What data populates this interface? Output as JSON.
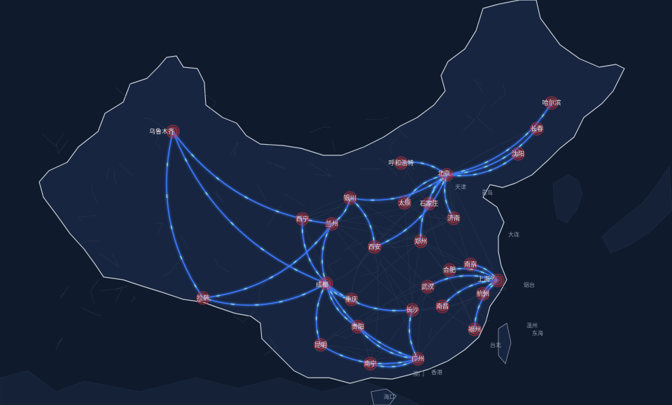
{
  "map": {
    "colors": {
      "background": "#0f1a2c",
      "land": "#16233a",
      "border": "#c9ced6",
      "roads": "#2a3a55",
      "route": "#3d7bff",
      "route_glow": "#7fe0ff",
      "city_ring": "#c0303a"
    },
    "cities": [
      {
        "id": "urumqi",
        "name": "乌鲁木齐"
      },
      {
        "id": "lhasa",
        "name": "拉萨"
      },
      {
        "id": "xining",
        "name": "西宁"
      },
      {
        "id": "lanzhou",
        "name": "兰州"
      },
      {
        "id": "yinchuan",
        "name": "银川"
      },
      {
        "id": "hohhot",
        "name": "呼和浩特"
      },
      {
        "id": "beijing",
        "name": "北京"
      },
      {
        "id": "harbin",
        "name": "哈尔滨"
      },
      {
        "id": "changchun",
        "name": "长春"
      },
      {
        "id": "shenyang",
        "name": "沈阳"
      },
      {
        "id": "taiyuan",
        "name": "太原"
      },
      {
        "id": "shijiazhuang",
        "name": "石家庄"
      },
      {
        "id": "jinan",
        "name": "济南"
      },
      {
        "id": "zhengzhou",
        "name": "郑州"
      },
      {
        "id": "xian",
        "name": "西安"
      },
      {
        "id": "chengdu",
        "name": "成都"
      },
      {
        "id": "chongqing",
        "name": "重庆"
      },
      {
        "id": "guiyang",
        "name": "贵阳"
      },
      {
        "id": "kunming",
        "name": "昆明"
      },
      {
        "id": "nanning",
        "name": "南宁"
      },
      {
        "id": "guangzhou",
        "name": "广州"
      },
      {
        "id": "changsha",
        "name": "长沙"
      },
      {
        "id": "wuhan",
        "name": "武汉"
      },
      {
        "id": "hefei",
        "name": "合肥"
      },
      {
        "id": "nanjing",
        "name": "南京"
      },
      {
        "id": "shanghai",
        "name": "上海"
      },
      {
        "id": "hangzhou",
        "name": "杭州"
      },
      {
        "id": "nanchang",
        "name": "南昌"
      },
      {
        "id": "fuzhou",
        "name": "福州"
      }
    ],
    "routes": [
      {
        "from": "urumqi",
        "to": "lhasa"
      },
      {
        "from": "urumqi",
        "to": "lanzhou"
      },
      {
        "from": "urumqi",
        "to": "chengdu"
      },
      {
        "from": "lhasa",
        "to": "lanzhou"
      },
      {
        "from": "lhasa",
        "to": "chengdu"
      },
      {
        "from": "lanzhou",
        "to": "yinchuan"
      },
      {
        "from": "lanzhou",
        "to": "chengdu"
      },
      {
        "from": "xining",
        "to": "chengdu"
      },
      {
        "from": "yinchuan",
        "to": "beijing"
      },
      {
        "from": "xian",
        "to": "yinchuan"
      },
      {
        "from": "xian",
        "to": "beijing"
      },
      {
        "from": "beijing",
        "to": "hohhot"
      },
      {
        "from": "beijing",
        "to": "harbin"
      },
      {
        "from": "beijing",
        "to": "changchun"
      },
      {
        "from": "beijing",
        "to": "shenyang"
      },
      {
        "from": "beijing",
        "to": "taiyuan"
      },
      {
        "from": "beijing",
        "to": "shijiazhuang"
      },
      {
        "from": "beijing",
        "to": "jinan"
      },
      {
        "from": "beijing",
        "to": "zhengzhou"
      },
      {
        "from": "chengdu",
        "to": "chongqing"
      },
      {
        "from": "chengdu",
        "to": "guiyang"
      },
      {
        "from": "chengdu",
        "to": "kunming"
      },
      {
        "from": "chengdu",
        "to": "guangzhou"
      },
      {
        "from": "chengdu",
        "to": "changsha"
      },
      {
        "from": "kunming",
        "to": "guangzhou"
      },
      {
        "from": "guiyang",
        "to": "guangzhou"
      },
      {
        "from": "nanning",
        "to": "guangzhou"
      },
      {
        "from": "changsha",
        "to": "guangzhou"
      },
      {
        "from": "shanghai",
        "to": "hefei"
      },
      {
        "from": "shanghai",
        "to": "nanjing"
      },
      {
        "from": "shanghai",
        "to": "wuhan"
      },
      {
        "from": "shanghai",
        "to": "nanchang"
      },
      {
        "from": "shanghai",
        "to": "fuzhou"
      },
      {
        "from": "shanghai",
        "to": "hangzhou"
      }
    ],
    "place_labels": [
      {
        "id": "tianjin",
        "text": "天津"
      },
      {
        "id": "shandong",
        "text": "青岛"
      },
      {
        "id": "taibei",
        "text": "台北"
      },
      {
        "id": "aomen",
        "text": "澳门"
      },
      {
        "id": "xianggang",
        "text": "香港"
      },
      {
        "id": "haikou",
        "text": "海口"
      },
      {
        "id": "dalian",
        "text": "大连"
      },
      {
        "id": "yantai",
        "text": "烟台"
      },
      {
        "id": "wenzhou",
        "text": "温州"
      },
      {
        "id": "donghai",
        "text": "东海"
      }
    ]
  }
}
